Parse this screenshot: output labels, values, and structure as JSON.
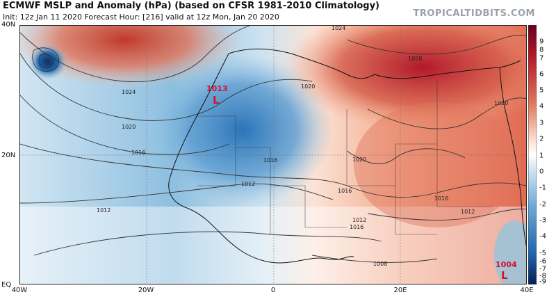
{
  "header": {
    "title": "ECMWF MSLP and Anomaly (hPa) (based on CFSR 1981-2010 Climatology)",
    "subtitle": "Init: 12z Jan 11 2020   Forecast Hour: [216]   valid at 12z Mon, Jan 20 2020",
    "brand": "TROPICALTIDBITS.COM"
  },
  "map": {
    "lat_labels": [
      "40N",
      "20N",
      "EQ"
    ],
    "lon_labels": [
      "40W",
      "20W",
      "0",
      "20E",
      "40E"
    ],
    "isobar_labels": [
      "1024",
      "1020",
      "1016",
      "1012",
      "1020",
      "1016",
      "1012",
      "1008",
      "1016",
      "1024",
      "1020",
      "1016",
      "1012",
      "1028",
      "1020",
      "1016",
      "1012"
    ],
    "lows": [
      {
        "value": "1013",
        "symbol": "L"
      },
      {
        "value": "1004",
        "symbol": "L"
      }
    ]
  },
  "colorbar": {
    "ticks": [
      "9",
      "8",
      "7",
      "6",
      "5",
      "4",
      "3",
      "2",
      "1",
      "0",
      "-1",
      "-2",
      "-3",
      "-4",
      "-5",
      "-6",
      "-7",
      "-8",
      "-9"
    ],
    "colors": {
      "strong_positive": "#a50f15",
      "positive": "#f4a582",
      "neutral": "#ffffff",
      "negative": "#92c5de",
      "strong_negative": "#08306b"
    }
  }
}
